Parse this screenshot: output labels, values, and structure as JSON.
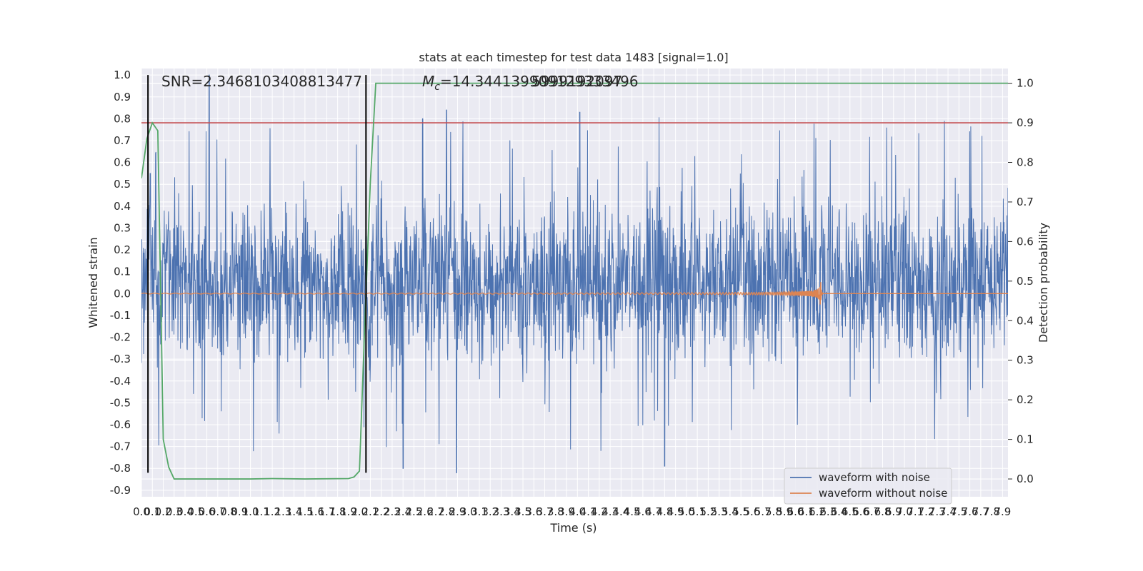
{
  "chart_data": {
    "type": "line",
    "title": "stats at each timestep for test data 1483 [signal=1.0]",
    "xlabel": "Time (s)",
    "ylabel": "Whitened strain",
    "y2label": "Detection probability",
    "xlim": [
      0.0,
      7.95
    ],
    "ylim": [
      -0.93,
      1.03
    ],
    "y2lim": [
      -0.045,
      1.0372
    ],
    "grid": true,
    "x_ticks": [
      "0.0",
      "0.1",
      "0.2",
      "0.3",
      "0.4",
      "0.5",
      "0.6",
      "0.7",
      "0.8",
      "0.9",
      "1.0",
      "1.1",
      "1.2",
      "1.3",
      "1.4",
      "1.5",
      "1.6",
      "1.7",
      "1.8",
      "1.9",
      "2.0",
      "2.1",
      "2.2",
      "2.3",
      "2.4",
      "2.5",
      "2.6",
      "2.7",
      "2.8",
      "2.9",
      "3.0",
      "3.1",
      "3.2",
      "3.3",
      "3.4",
      "3.5",
      "3.6",
      "3.7",
      "3.8",
      "3.9",
      "4.0",
      "4.1",
      "4.2",
      "4.3",
      "4.4",
      "4.5",
      "4.6",
      "4.7",
      "4.8",
      "4.9",
      "5.0",
      "5.1",
      "5.2",
      "5.3",
      "5.4",
      "5.5",
      "5.6",
      "5.7",
      "5.8",
      "5.9",
      "6.0",
      "6.1",
      "6.2",
      "6.3",
      "6.4",
      "6.5",
      "6.6",
      "6.7",
      "6.8",
      "6.9",
      "7.0",
      "7.1",
      "7.2",
      "7.3",
      "7.4",
      "7.5",
      "7.6",
      "7.7",
      "7.8",
      "7.9"
    ],
    "y_ticks": [
      "-0.9",
      "-0.8",
      "-0.7",
      "-0.6",
      "-0.5",
      "-0.4",
      "-0.3",
      "-0.2",
      "-0.1",
      "0.0",
      "0.1",
      "0.2",
      "0.3",
      "0.4",
      "0.5",
      "0.6",
      "0.7",
      "0.8",
      "0.9",
      "1.0"
    ],
    "y2_ticks": [
      "0.0",
      "0.1",
      "0.2",
      "0.3",
      "0.4",
      "0.5",
      "0.6",
      "0.7",
      "0.8",
      "0.9",
      "1.0"
    ],
    "series": [
      {
        "name": "waveform with noise",
        "axis": "left",
        "color": "#4c72b0",
        "typical_envelope": [
          -0.35,
          0.45
        ],
        "peaks": [
          {
            "x": 0.62,
            "y": 1.0
          },
          {
            "x": 2.8,
            "y": 0.84
          },
          {
            "x": 4.02,
            "y": 0.83
          },
          {
            "x": 2.58,
            "y": 0.8
          },
          {
            "x": 2.89,
            "y": -0.82
          },
          {
            "x": 2.4,
            "y": -0.8
          },
          {
            "x": 4.8,
            "y": -0.79
          },
          {
            "x": 0.08,
            "y": 0.55
          }
        ]
      },
      {
        "name": "waveform without noise",
        "axis": "left",
        "color": "#dd8452",
        "chirp_end_time": 6.23,
        "peak_amplitude": 0.1
      },
      {
        "name": "",
        "axis": "right",
        "color": "#55a868",
        "x": [
          0.0,
          0.05,
          0.1,
          0.15,
          0.2,
          0.25,
          0.3,
          0.5,
          1.0,
          1.2,
          1.5,
          1.9,
          1.95,
          2.0,
          2.05,
          2.1,
          2.15,
          7.95
        ],
        "y": [
          0.76,
          0.86,
          0.9,
          0.88,
          0.1,
          0.03,
          0.0,
          0.0,
          0.0,
          0.001,
          0.0,
          0.001,
          0.005,
          0.02,
          0.4,
          0.75,
          1.0,
          1.0
        ]
      }
    ],
    "threshold": {
      "axis": "right",
      "y": 0.9,
      "color": "#c44e52"
    },
    "vlines": [
      {
        "x": 0.06,
        "ymin": -0.82,
        "ymax": 1.0,
        "color": "#000000"
      },
      {
        "x": 2.06,
        "ymin": -0.82,
        "ymax": 1.0,
        "color": "#000000"
      }
    ],
    "annotations": [
      {
        "id": "snr",
        "text": "SNR=2.3468103408813477",
        "x": 0.18,
        "y": 1.02
      },
      {
        "id": "mc",
        "text": "=14.344139909129333496",
        "prefix": "M",
        "subscript": "c",
        "x": 2.6,
        "y": 1.02
      },
      {
        "id": "mc-overlap",
        "text": "5999192097",
        "x": 3.6,
        "y": 1.02
      }
    ],
    "legend": {
      "placement": "lower-right",
      "entries": [
        {
          "label": "waveform with noise",
          "color": "#4c72b0"
        },
        {
          "label": "waveform without noise",
          "color": "#dd8452"
        }
      ]
    }
  }
}
